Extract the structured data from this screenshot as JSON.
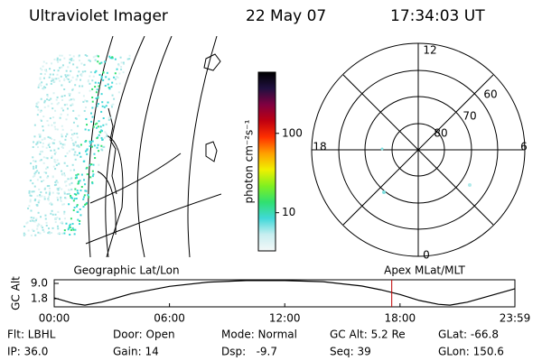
{
  "header": {
    "instrument": "Ultraviolet Imager",
    "date": "22 May 07",
    "time": "17:34:03 UT"
  },
  "colorbar": {
    "label": "photon cm⁻²s⁻¹",
    "lim": [
      3.3,
      590
    ],
    "log": true,
    "ticks": [
      10,
      100
    ],
    "colors": [
      "#f4f8f8",
      "#c8eef0",
      "#40d8d8",
      "#30e070",
      "#80f020",
      "#f0f000",
      "#ffa000",
      "#ff3000",
      "#c00010",
      "#800040",
      "#201040",
      "#000000"
    ]
  },
  "polar": {
    "mlt_labels": [
      "12",
      "18",
      "6",
      "0"
    ],
    "lat_labels": [
      "60",
      "70",
      "80"
    ]
  },
  "panel_titles": {
    "left": "Geographic Lat/Lon",
    "right": "Apex MLat/MLT"
  },
  "chart_data": {
    "type": "line",
    "ylabel": "GC Alt",
    "x": [
      0,
      1,
      1.6,
      2.5,
      4,
      6,
      8,
      10,
      12,
      14,
      16,
      17,
      18,
      19,
      20,
      20.6,
      21.5,
      23,
      23.98
    ],
    "values": [
      2.2,
      -0.4,
      -1.2,
      0.3,
      4.2,
      7.6,
      9.6,
      10.3,
      10.3,
      9.8,
      7.8,
      6.0,
      3.8,
      1.0,
      -0.8,
      -1.2,
      0.2,
      4.0,
      6.5
    ],
    "color": "#000000",
    "marker": 17.57,
    "marker_color": "#c00000",
    "xlim": [
      0,
      23.98
    ],
    "ylim": [
      -2.0,
      10.7
    ],
    "xticks": [
      {
        "value": 0,
        "label": "00:00"
      },
      {
        "value": 6,
        "label": "06:00"
      },
      {
        "value": 12,
        "label": "12:00"
      },
      {
        "value": 18,
        "label": "18:00"
      },
      {
        "value": 23.98,
        "label": "23:59"
      }
    ],
    "yticks": [
      1.8,
      {
        "value": 9,
        "label": "9.0"
      }
    ]
  },
  "footer": {
    "rows": [
      [
        "Flt: LBHL",
        "Door: Open",
        "Mode: Normal",
        "GC Alt: 5.2 Re",
        "GLat: -66.8"
      ],
      [
        "IP: 36.0",
        "Gain: 14",
        "Dsp:   -9.7",
        "Seq: 39",
        "GLon: 150.6"
      ]
    ]
  }
}
